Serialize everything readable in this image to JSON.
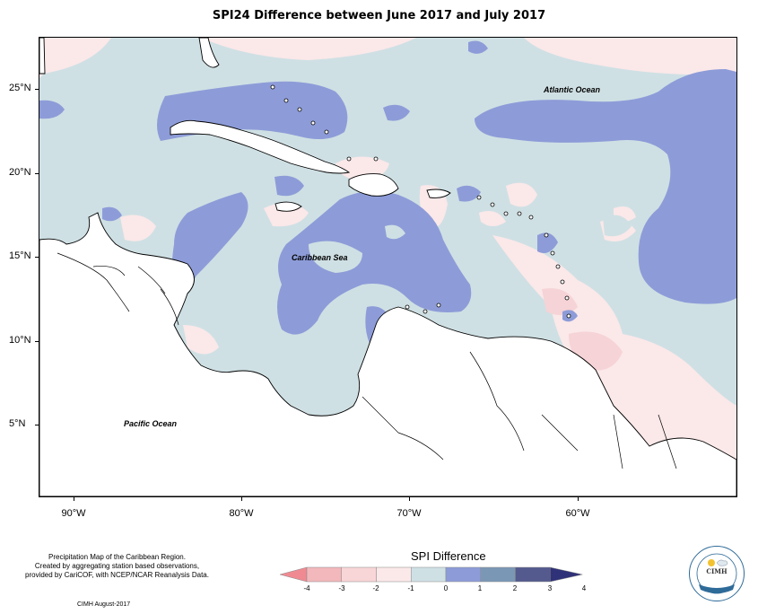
{
  "title": "SPI24 Difference between June 2017 and July 2017",
  "map": {
    "latitude_labels": [
      "25°N",
      "20°N",
      "15°N",
      "10°N",
      "5°N"
    ],
    "longitude_labels": [
      "90°W",
      "80°W",
      "70°W",
      "60°W"
    ],
    "ocean_labels": {
      "atlantic": "Atlantic Ocean",
      "caribbean": "Caribbean Sea",
      "pacific": "Pacific Ocean"
    }
  },
  "caption": {
    "line1": "Precipitation Map of the Caribbean Region.",
    "line2": "Created by aggregating station based observations,",
    "line3": "provided by CariCOF, with NCEP/NCAR Reanalysis Data."
  },
  "credit": "CIMH August-2017",
  "legend": {
    "title": "SPI Difference",
    "tick_labels": [
      "-4",
      "-3",
      "-2",
      "-1",
      "0",
      "1",
      "2",
      "3",
      "4"
    ],
    "colors": [
      "#f08a92",
      "#f2b8bc",
      "#f8d5d7",
      "#fbe8e9",
      "#cfe0e4",
      "#8d9cd8",
      "#7a97b6",
      "#545a8e",
      "#2f3278"
    ]
  },
  "logo": {
    "text": "CIMH"
  }
}
